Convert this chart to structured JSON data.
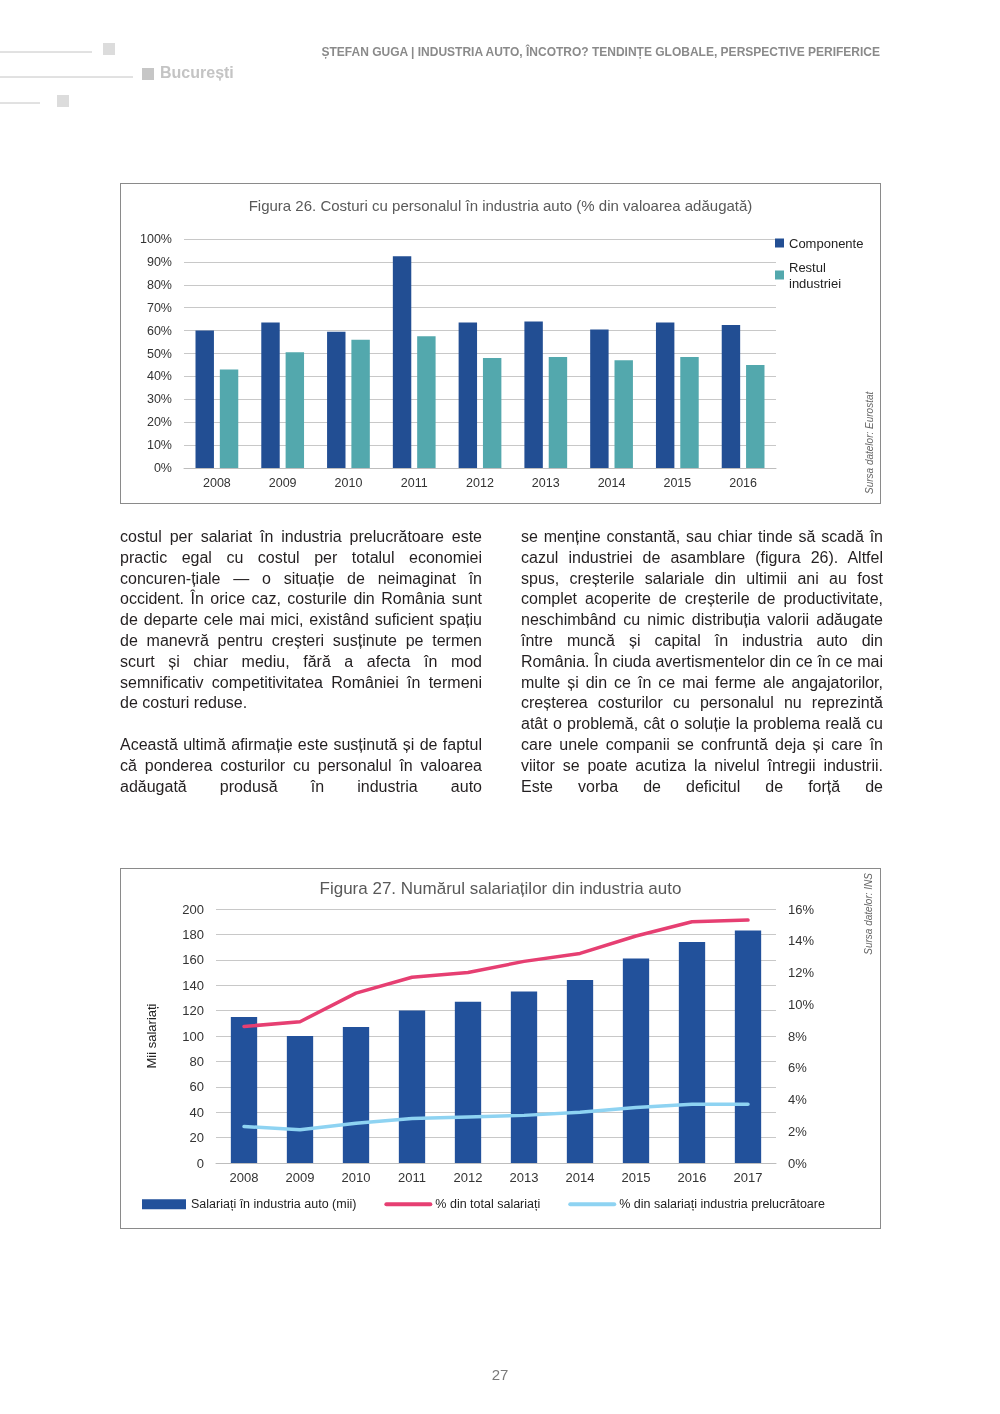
{
  "chart_data": [
    {
      "type": "other",
      "title": "ȘTEFAN GUGA | INDUSTRIA AUTO, ÎNCOTRO? TENDINȚE GLOBALE, PERSPECTIVE PERIFERICE",
      "annotations": [
        "București"
      ]
    },
    {
      "type": "bar",
      "title": "Figura 26. Costuri cu personalul în industria auto (% din valoarea adăugată)",
      "categories": [
        "2008",
        "2009",
        "2010",
        "2011",
        "2012",
        "2013",
        "2014",
        "2015",
        "2016"
      ],
      "series": [
        {
          "name": "Componente",
          "color": "#224e93",
          "values": [
            60,
            63.5,
            59.5,
            92.5,
            63.5,
            64,
            60.5,
            63.5,
            62.5
          ]
        },
        {
          "name": "Restul industriei",
          "color": "#53a8ad",
          "values": [
            43,
            50.5,
            56,
            57.5,
            48,
            48.5,
            47,
            48.5,
            45
          ]
        }
      ],
      "ylim": [
        0,
        100
      ],
      "yticks": [
        {
          "value": 0,
          "label": "0%"
        },
        {
          "value": 10,
          "label": "10%"
        },
        {
          "value": 20,
          "label": "20%"
        },
        {
          "value": 30,
          "label": "30%"
        },
        {
          "value": 40,
          "label": "40%"
        },
        {
          "value": 50,
          "label": "50%"
        },
        {
          "value": 60,
          "label": "60%"
        },
        {
          "value": 70,
          "label": "70%"
        },
        {
          "value": 80,
          "label": "80%"
        },
        {
          "value": 90,
          "label": "90%"
        },
        {
          "value": 100,
          "label": "100%"
        }
      ],
      "grid": "y",
      "legend": "top right",
      "annotations": [
        "Sursa datelor: Eurostat"
      ]
    },
    {
      "type": "other",
      "annotations": [
        "costul per salariat în industria prelucrătoare este practic egal cu costul per totalul economiei concuren-țiale — o situație de neimaginat în occident. În orice caz, costurile din România sunt de departe cele mai mici, existând suficient spațiu de manevră pentru creșteri susținute pe termen scurt și chiar mediu, fără a afecta în mod semnificativ competitivitatea României în termeni de costuri reduse.",
        "Această ultimă afirmație este susținută și de faptul că ponderea costurilor cu personalul în valoarea adăugată produsă în industria auto",
        "se menține constantă, sau chiar tinde să scadă în cazul industriei de asamblare (figura 26). Altfel spus, creșterile salariale din ultimii ani au fost complet acoperite de creșterile de productivitate, neschimbând cu nimic distribuția valorii adăugate între muncă și capital în industria auto din România. În ciuda avertismentelor din ce în ce mai multe și din ce în ce mai ferme ale angajatorilor, creșterea costurilor cu personalul nu reprezintă atât o problemă, cât o soluție la problema reală cu care unele companii se confruntă deja și care în viitor se poate acutiza la nivelul întregii industrii. Este vorba de deficitul de forță de"
      ]
    },
    {
      "type": "bar",
      "title": "Figura 27. Numărul salariaților din industria auto",
      "ylabel": "Mii salariați",
      "categories": [
        "2008",
        "2009",
        "2010",
        "2011",
        "2012",
        "2013",
        "2014",
        "2015",
        "2016",
        "2017"
      ],
      "series": [
        {
          "name": "Salariați în industria auto (mii)",
          "color": "#22519b",
          "values": [
            115,
            100,
            107,
            120,
            127,
            135,
            144,
            161,
            174,
            183
          ]
        },
        {
          "name": "% din total salariați",
          "type": "line",
          "axis": "y2",
          "color": "#e63f72",
          "values": [
            8.6,
            8.9,
            10.7,
            11.7,
            12.0,
            12.7,
            13.2,
            14.3,
            15.2,
            15.3
          ]
        },
        {
          "name": "% din salariați industria prelucrătoare",
          "type": "line",
          "axis": "y2",
          "color": "#8ed3f2",
          "values": [
            2.3,
            2.1,
            2.5,
            2.8,
            2.9,
            3.0,
            3.2,
            3.5,
            3.7,
            3.7
          ]
        }
      ],
      "ylim": [
        0,
        200
      ],
      "yticks": [
        0,
        20,
        40,
        60,
        80,
        100,
        120,
        140,
        160,
        180,
        200
      ],
      "y2lim": [
        0,
        16
      ],
      "y2ticks": [
        {
          "value": 0,
          "label": "0%"
        },
        {
          "value": 2,
          "label": "2%"
        },
        {
          "value": 4,
          "label": "4%"
        },
        {
          "value": 6,
          "label": "6%"
        },
        {
          "value": 8,
          "label": "8%"
        },
        {
          "value": 10,
          "label": "10%"
        },
        {
          "value": 12,
          "label": "12%"
        },
        {
          "value": 14,
          "label": "14%"
        },
        {
          "value": 16,
          "label": "16%"
        }
      ],
      "grid": "y",
      "legend": "bottom",
      "marker": "none",
      "line_style": "solid",
      "annotations": [
        "Sursa datelor: INS"
      ]
    },
    {
      "type": "other",
      "annotations": [
        "27"
      ]
    }
  ]
}
